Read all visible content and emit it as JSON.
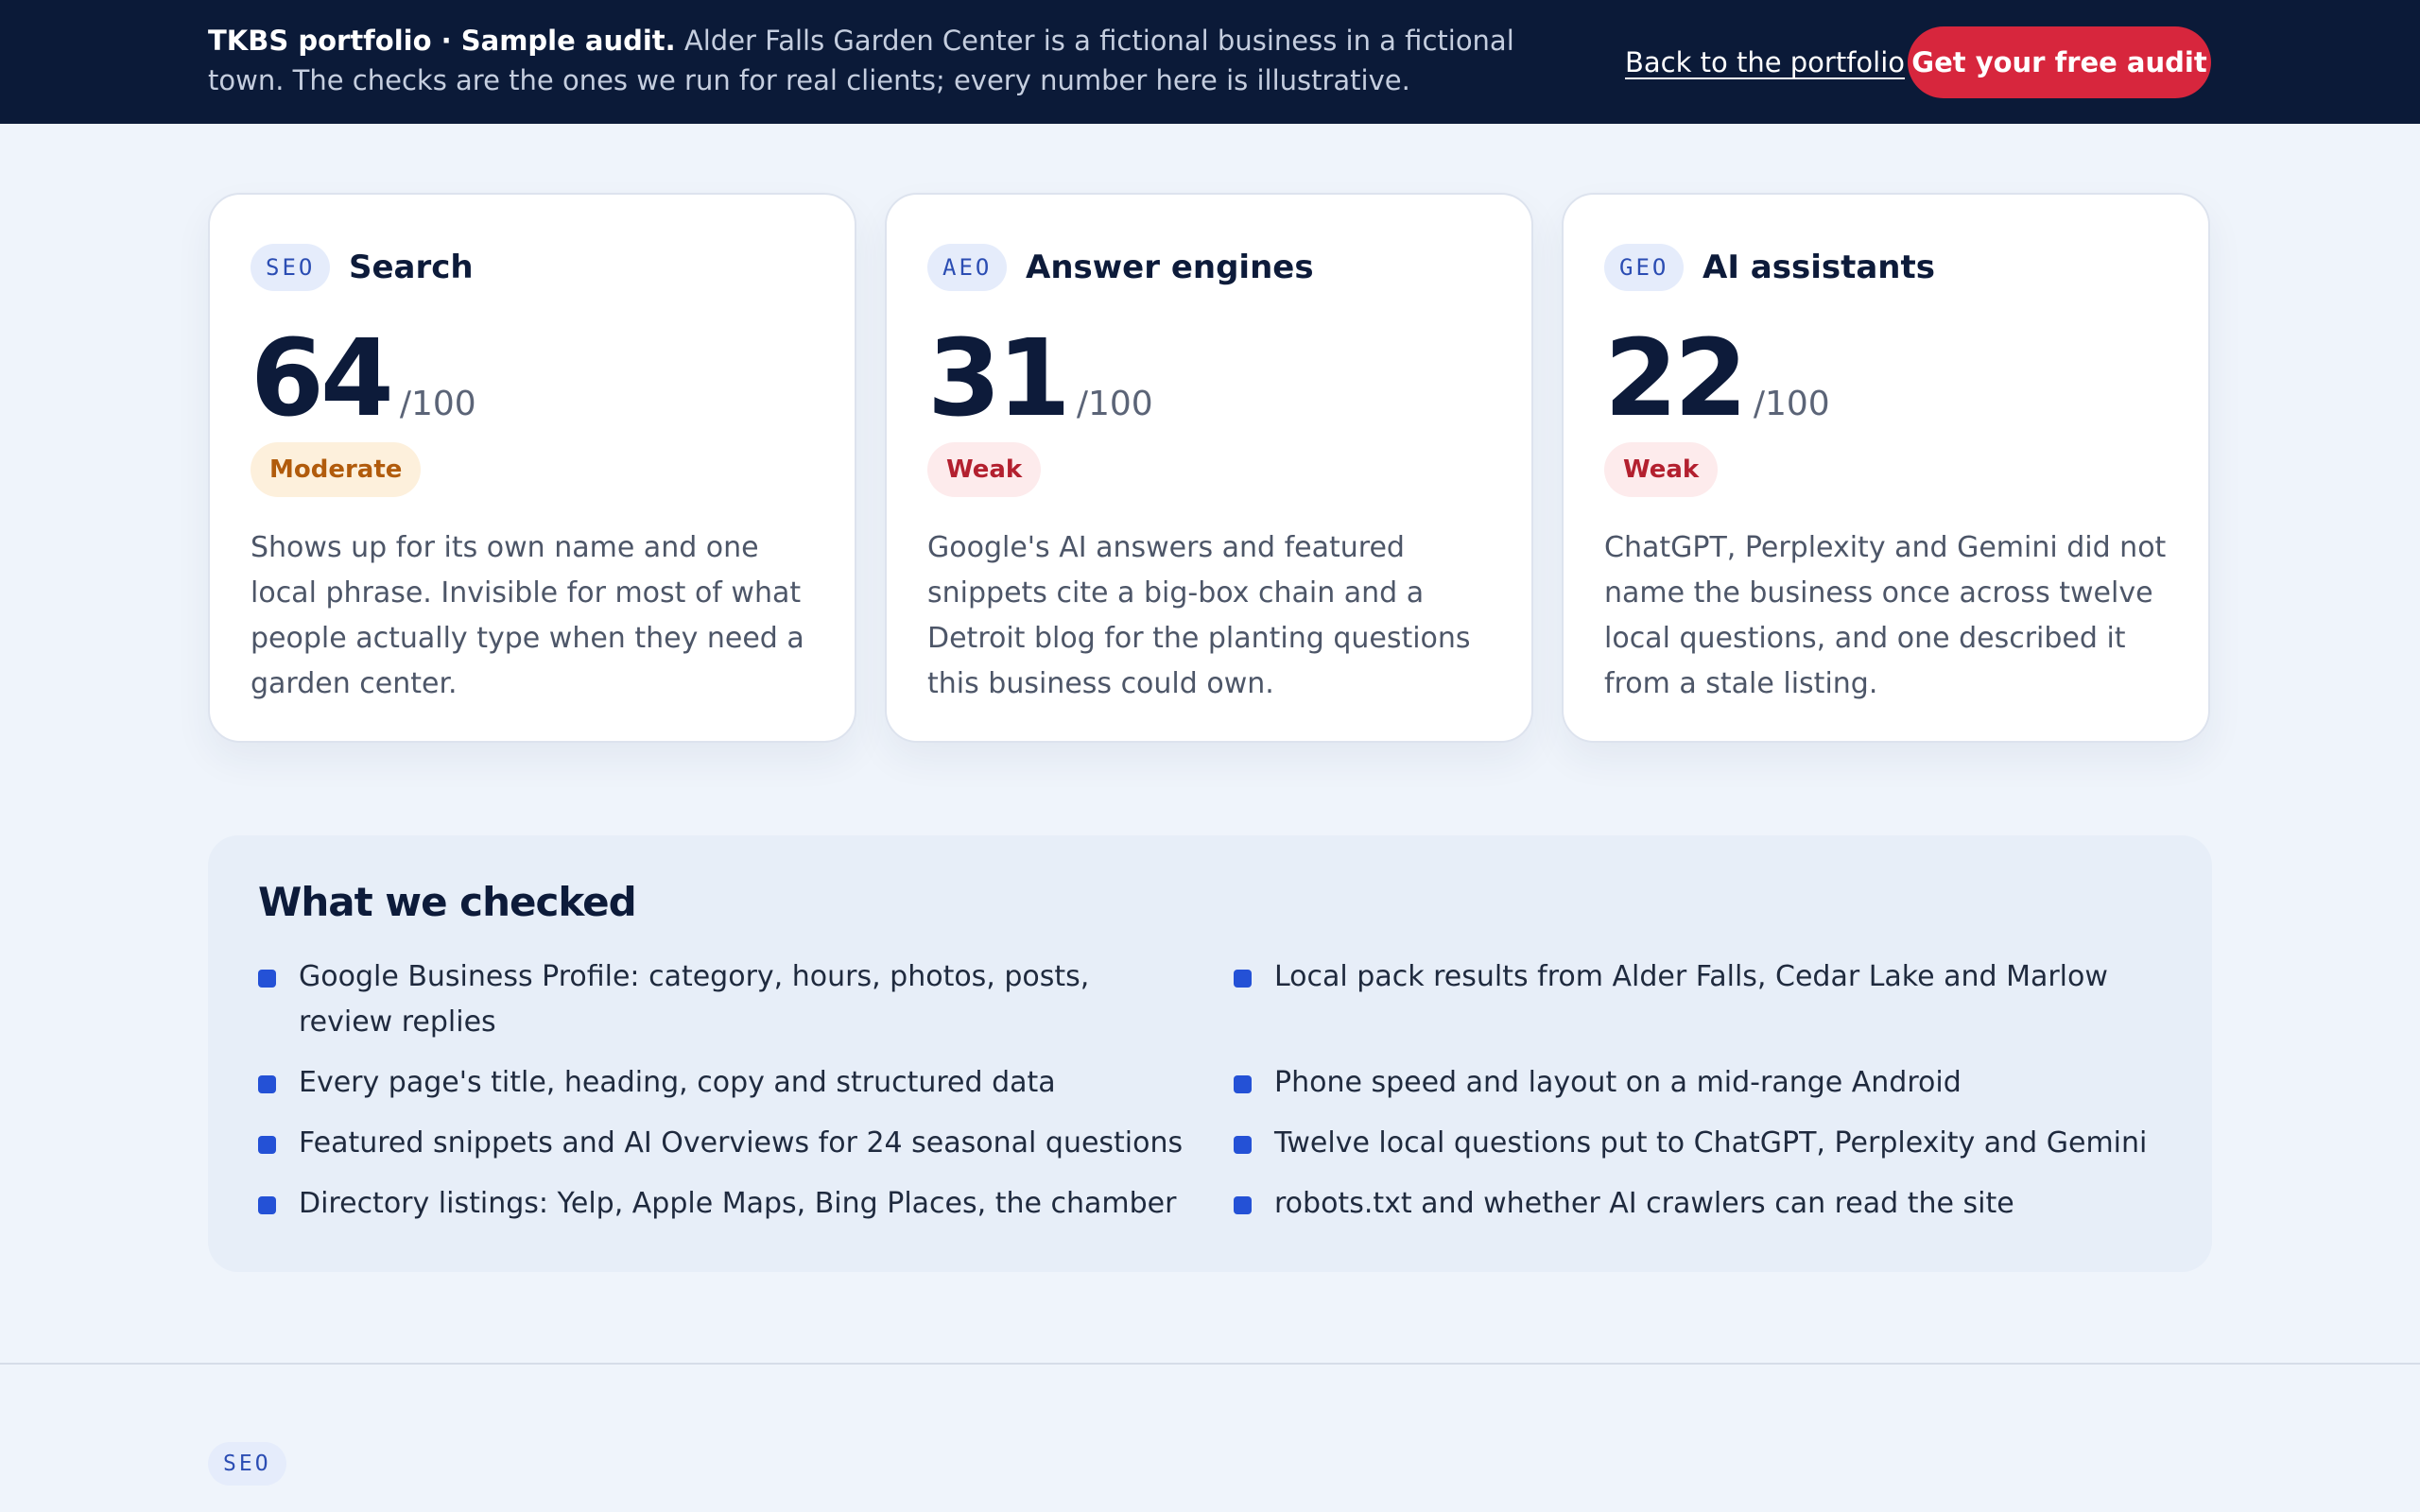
{
  "banner": {
    "lead": "TKBS portfolio · Sample audit.",
    "text": "Alder Falls Garden Center is a fictional business in a fictional town. The checks are the ones we run for real clients; every number here is illustrative.",
    "back_link": "Back to the portfolio",
    "cta": "Get your free audit"
  },
  "cards": [
    {
      "tag": "SEO",
      "title": "Search",
      "score": "64",
      "max": "/100",
      "rating": "Moderate",
      "description": "Shows up for its own name and one local phrase. Invisible for most of what people actually type when they need a garden center."
    },
    {
      "tag": "AEO",
      "title": "Answer engines",
      "score": "31",
      "max": "/100",
      "rating": "Weak",
      "description": "Google's AI answers and featured snippets cite a big-box chain and a Detroit blog for the planting questions this business could own."
    },
    {
      "tag": "GEO",
      "title": "AI assistants",
      "score": "22",
      "max": "/100",
      "rating": "Weak",
      "description": "ChatGPT, Perplexity and Gemini did not name the business once across twelve local questions, and one described it from a stale listing."
    }
  ],
  "checked": {
    "title": "What we checked",
    "items": [
      "Google Business Profile: category, hours, photos, posts, review replies",
      "Local pack results from Alder Falls, Cedar Lake and Marlow",
      "Every page's title, heading, copy and structured data",
      "Phone speed and layout on a mid-range Android",
      "Featured snippets and AI Overviews for 24 seasonal questions",
      "Twelve local questions put to ChatGPT, Perplexity and Gemini",
      "Directory listings: Yelp, Apple Maps, Bing Places, the chamber",
      "robots.txt and whether AI crawlers can read the site"
    ]
  },
  "next_section": {
    "tag": "SEO"
  },
  "colors": {
    "banner_bg": "#0b1a38",
    "cta_red": "#d7263d",
    "accent_blue": "#2451d6",
    "moderate": "#b15b0c",
    "weak": "#b3202f"
  }
}
